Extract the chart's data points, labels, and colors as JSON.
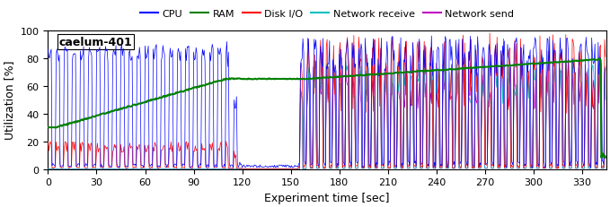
{
  "title": "caelum-401",
  "xlabel": "Experiment time [sec]",
  "ylabel": "Utilization [%]",
  "xlim": [
    0,
    345
  ],
  "ylim": [
    0,
    100
  ],
  "xticks": [
    0,
    30,
    60,
    90,
    120,
    150,
    180,
    210,
    240,
    270,
    300,
    330
  ],
  "yticks": [
    0,
    20,
    40,
    60,
    80,
    100
  ],
  "legend_labels": [
    "CPU",
    "RAM",
    "Disk I/O",
    "Network receive",
    "Network send"
  ],
  "legend_colors": [
    "#0000ff",
    "#008000",
    "#ff0000",
    "#00bfbf",
    "#bf00bf"
  ],
  "cpu_color": "#0000ff",
  "ram_color": "#008000",
  "disk_color": "#ff0000",
  "net_recv_color": "#00bfbf",
  "net_send_color": "#bf00bf",
  "figsize": [
    6.79,
    2.32
  ],
  "dpi": 100,
  "phase1_end": 110,
  "phase2_end": 120,
  "phase3_end": 155,
  "t_total": 345,
  "ram_start": 30,
  "ram_phase2": 65,
  "ram_end": 79,
  "ram_drop_t": 340
}
